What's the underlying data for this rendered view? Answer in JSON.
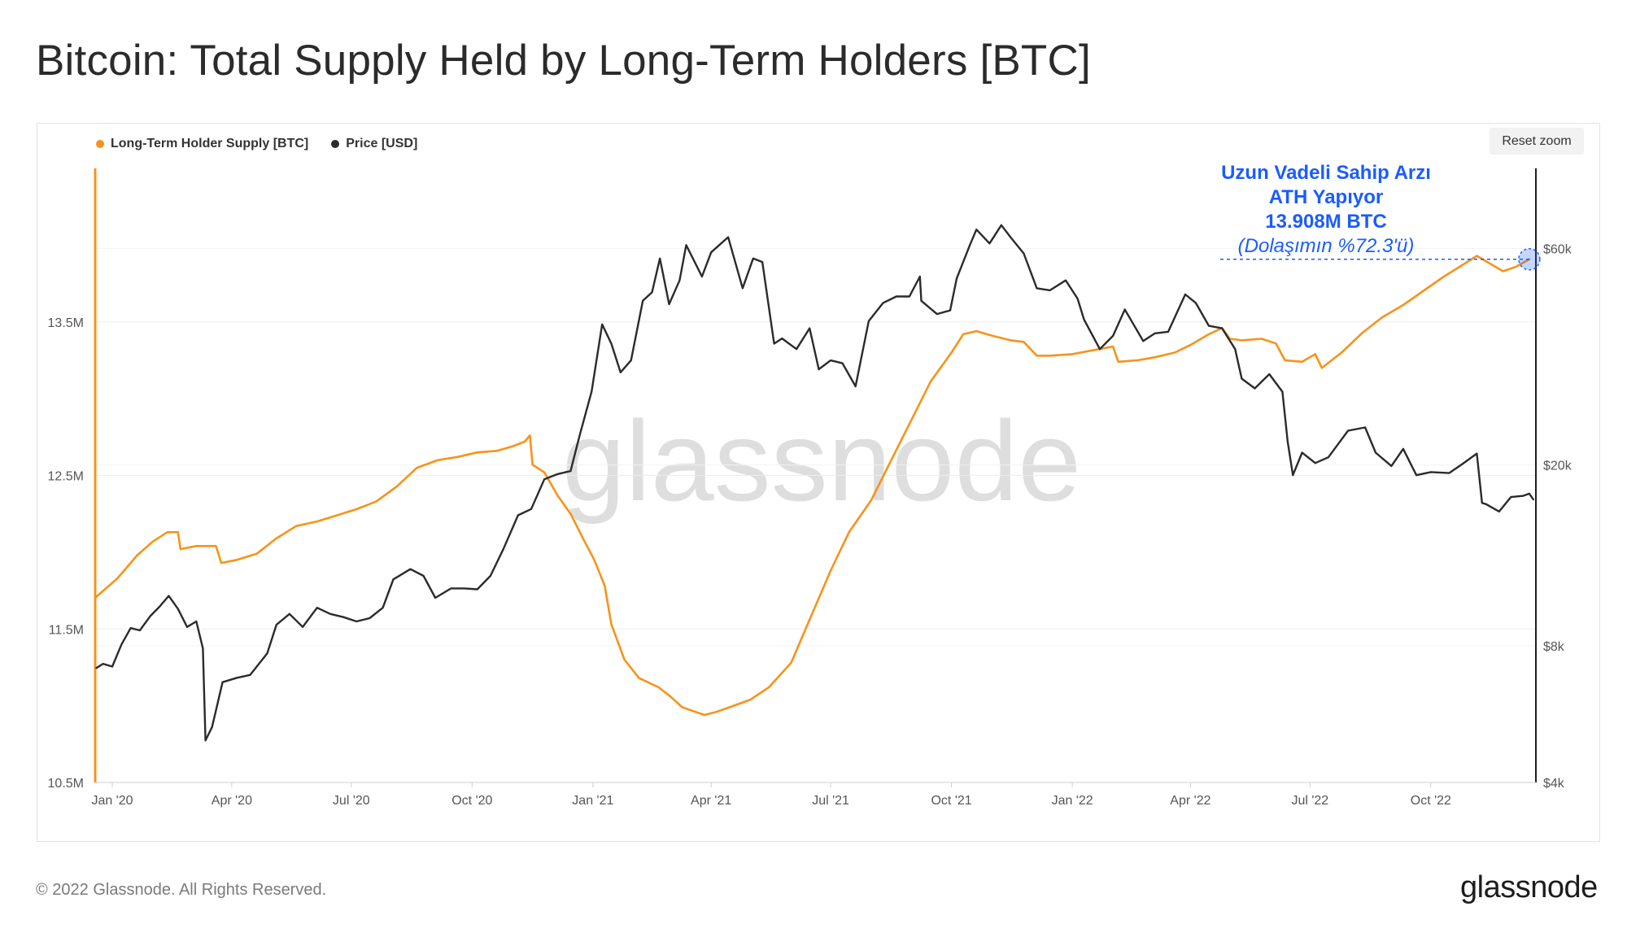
{
  "title": "Bitcoin: Total Supply Held by Long-Term Holders [BTC]",
  "reset_zoom_label": "Reset zoom",
  "footer_text": "© 2022 Glassnode. All Rights Reserved.",
  "logo_text": "glassnode",
  "watermark_text": "glassnode",
  "colors": {
    "supply": "#f7931a",
    "price": "#2b2b2b",
    "annotation": "#1a5cff"
  },
  "chart_data": {
    "type": "line",
    "title": "Bitcoin: Total Supply Held by Long-Term Holders [BTC]",
    "legend_position": "top-left",
    "grid": true,
    "x_range": [
      "2019-12-19",
      "2022-12-20"
    ],
    "x_ticks": [
      {
        "label": "Jan '20",
        "date": "2020-01-01"
      },
      {
        "label": "Apr '20",
        "date": "2020-04-01"
      },
      {
        "label": "Jul '20",
        "date": "2020-07-01"
      },
      {
        "label": "Oct '20",
        "date": "2020-10-01"
      },
      {
        "label": "Jan '21",
        "date": "2021-01-01"
      },
      {
        "label": "Apr '21",
        "date": "2021-04-01"
      },
      {
        "label": "Jul '21",
        "date": "2021-07-01"
      },
      {
        "label": "Oct '21",
        "date": "2021-10-01"
      },
      {
        "label": "Jan '22",
        "date": "2022-01-01"
      },
      {
        "label": "Apr '22",
        "date": "2022-04-01"
      },
      {
        "label": "Jul '22",
        "date": "2022-07-01"
      },
      {
        "label": "Oct '22",
        "date": "2022-10-01"
      }
    ],
    "y_left": {
      "ticks": [
        {
          "label": "10.5M",
          "value": 10500000
        },
        {
          "label": "11.5M",
          "value": 11500000
        },
        {
          "label": "12.5M",
          "value": 12500000
        },
        {
          "label": "13.5M",
          "value": 13500000
        }
      ],
      "range": [
        10500000,
        14500000
      ]
    },
    "y_right": {
      "scale": "log",
      "ticks": [
        {
          "label": "$4k",
          "value": 4000
        },
        {
          "label": "$8k",
          "value": 8000
        },
        {
          "label": "$20k",
          "value": 20000
        },
        {
          "label": "$60k",
          "value": 60000
        }
      ],
      "range": [
        4000,
        90000
      ]
    },
    "series": [
      {
        "name": "Long-Term Holder Supply [BTC]",
        "axis": "left",
        "color": "#f7931a",
        "points": [
          [
            "2019-12-20",
            11710000
          ],
          [
            "2020-01-05",
            11830000
          ],
          [
            "2020-01-20",
            11980000
          ],
          [
            "2020-02-01",
            12070000
          ],
          [
            "2020-02-12",
            12130000
          ],
          [
            "2020-02-20",
            12130000
          ],
          [
            "2020-02-22",
            12020000
          ],
          [
            "2020-03-05",
            12040000
          ],
          [
            "2020-03-20",
            12040000
          ],
          [
            "2020-03-24",
            11930000
          ],
          [
            "2020-04-05",
            11950000
          ],
          [
            "2020-04-20",
            11990000
          ],
          [
            "2020-05-05",
            12090000
          ],
          [
            "2020-05-20",
            12170000
          ],
          [
            "2020-06-05",
            12200000
          ],
          [
            "2020-06-20",
            12240000
          ],
          [
            "2020-07-05",
            12280000
          ],
          [
            "2020-07-20",
            12330000
          ],
          [
            "2020-08-05",
            12430000
          ],
          [
            "2020-08-20",
            12550000
          ],
          [
            "2020-09-05",
            12600000
          ],
          [
            "2020-09-20",
            12620000
          ],
          [
            "2020-10-05",
            12650000
          ],
          [
            "2020-10-20",
            12660000
          ],
          [
            "2020-11-01",
            12690000
          ],
          [
            "2020-11-10",
            12720000
          ],
          [
            "2020-11-14",
            12760000
          ],
          [
            "2020-11-16",
            12570000
          ],
          [
            "2020-11-25",
            12520000
          ],
          [
            "2020-12-05",
            12370000
          ],
          [
            "2020-12-15",
            12250000
          ],
          [
            "2020-12-25",
            12080000
          ],
          [
            "2021-01-02",
            11950000
          ],
          [
            "2021-01-10",
            11780000
          ],
          [
            "2021-01-15",
            11530000
          ],
          [
            "2021-01-25",
            11300000
          ],
          [
            "2021-02-05",
            11180000
          ],
          [
            "2021-02-20",
            11120000
          ],
          [
            "2021-03-01",
            11060000
          ],
          [
            "2021-03-10",
            10990000
          ],
          [
            "2021-03-20",
            10960000
          ],
          [
            "2021-03-27",
            10940000
          ],
          [
            "2021-04-05",
            10960000
          ],
          [
            "2021-04-15",
            10990000
          ],
          [
            "2021-05-01",
            11040000
          ],
          [
            "2021-05-15",
            11120000
          ],
          [
            "2021-06-01",
            11280000
          ],
          [
            "2021-06-15",
            11560000
          ],
          [
            "2021-07-01",
            11880000
          ],
          [
            "2021-07-15",
            12130000
          ],
          [
            "2021-08-01",
            12340000
          ],
          [
            "2021-08-15",
            12580000
          ],
          [
            "2021-09-01",
            12870000
          ],
          [
            "2021-09-15",
            13110000
          ],
          [
            "2021-10-01",
            13300000
          ],
          [
            "2021-10-10",
            13420000
          ],
          [
            "2021-10-20",
            13440000
          ],
          [
            "2021-11-01",
            13410000
          ],
          [
            "2021-11-15",
            13380000
          ],
          [
            "2021-11-25",
            13370000
          ],
          [
            "2021-12-05",
            13280000
          ],
          [
            "2021-12-15",
            13280000
          ],
          [
            "2022-01-01",
            13290000
          ],
          [
            "2022-01-20",
            13320000
          ],
          [
            "2022-02-01",
            13340000
          ],
          [
            "2022-02-05",
            13240000
          ],
          [
            "2022-02-20",
            13250000
          ],
          [
            "2022-03-05",
            13270000
          ],
          [
            "2022-03-20",
            13300000
          ],
          [
            "2022-04-01",
            13350000
          ],
          [
            "2022-04-15",
            13420000
          ],
          [
            "2022-04-25",
            13460000
          ],
          [
            "2022-05-01",
            13390000
          ],
          [
            "2022-05-10",
            13380000
          ],
          [
            "2022-05-25",
            13390000
          ],
          [
            "2022-06-05",
            13360000
          ],
          [
            "2022-06-12",
            13250000
          ],
          [
            "2022-06-25",
            13240000
          ],
          [
            "2022-07-05",
            13290000
          ],
          [
            "2022-07-10",
            13200000
          ],
          [
            "2022-07-25",
            13300000
          ],
          [
            "2022-08-10",
            13430000
          ],
          [
            "2022-08-25",
            13530000
          ],
          [
            "2022-09-10",
            13610000
          ],
          [
            "2022-09-25",
            13700000
          ],
          [
            "2022-10-10",
            13790000
          ],
          [
            "2022-10-25",
            13870000
          ],
          [
            "2022-11-05",
            13930000
          ],
          [
            "2022-11-15",
            13880000
          ],
          [
            "2022-11-25",
            13830000
          ],
          [
            "2022-12-05",
            13860000
          ],
          [
            "2022-12-15",
            13908000
          ]
        ]
      },
      {
        "name": "Price [USD]",
        "axis": "right",
        "color": "#2b2b2b",
        "points": [
          [
            "2019-12-20",
            7150
          ],
          [
            "2019-12-25",
            7300
          ],
          [
            "2020-01-01",
            7200
          ],
          [
            "2020-01-08",
            8050
          ],
          [
            "2020-01-15",
            8750
          ],
          [
            "2020-01-22",
            8650
          ],
          [
            "2020-01-30",
            9300
          ],
          [
            "2020-02-06",
            9750
          ],
          [
            "2020-02-13",
            10300
          ],
          [
            "2020-02-20",
            9650
          ],
          [
            "2020-02-27",
            8800
          ],
          [
            "2020-03-05",
            9050
          ],
          [
            "2020-03-10",
            7900
          ],
          [
            "2020-03-12",
            4950
          ],
          [
            "2020-03-17",
            5300
          ],
          [
            "2020-03-25",
            6650
          ],
          [
            "2020-04-05",
            6800
          ],
          [
            "2020-04-15",
            6900
          ],
          [
            "2020-04-28",
            7700
          ],
          [
            "2020-05-05",
            8900
          ],
          [
            "2020-05-15",
            9400
          ],
          [
            "2020-05-25",
            8800
          ],
          [
            "2020-06-05",
            9700
          ],
          [
            "2020-06-15",
            9400
          ],
          [
            "2020-06-25",
            9250
          ],
          [
            "2020-07-05",
            9050
          ],
          [
            "2020-07-15",
            9200
          ],
          [
            "2020-07-25",
            9700
          ],
          [
            "2020-08-02",
            11200
          ],
          [
            "2020-08-15",
            11800
          ],
          [
            "2020-08-25",
            11400
          ],
          [
            "2020-09-03",
            10200
          ],
          [
            "2020-09-15",
            10700
          ],
          [
            "2020-09-25",
            10700
          ],
          [
            "2020-10-05",
            10650
          ],
          [
            "2020-10-15",
            11400
          ],
          [
            "2020-10-25",
            13100
          ],
          [
            "2020-11-05",
            15500
          ],
          [
            "2020-11-15",
            16000
          ],
          [
            "2020-11-25",
            18600
          ],
          [
            "2020-12-05",
            19100
          ],
          [
            "2020-12-15",
            19400
          ],
          [
            "2020-12-22",
            23300
          ],
          [
            "2020-12-31",
            29000
          ],
          [
            "2021-01-08",
            40800
          ],
          [
            "2021-01-15",
            37000
          ],
          [
            "2021-01-22",
            32000
          ],
          [
            "2021-01-30",
            34000
          ],
          [
            "2021-02-08",
            46000
          ],
          [
            "2021-02-15",
            48000
          ],
          [
            "2021-02-21",
            57000
          ],
          [
            "2021-02-28",
            45200
          ],
          [
            "2021-03-08",
            51000
          ],
          [
            "2021-03-13",
            61000
          ],
          [
            "2021-03-25",
            52000
          ],
          [
            "2021-04-01",
            58800
          ],
          [
            "2021-04-14",
            63500
          ],
          [
            "2021-04-25",
            49000
          ],
          [
            "2021-05-03",
            57000
          ],
          [
            "2021-05-10",
            56000
          ],
          [
            "2021-05-19",
            37000
          ],
          [
            "2021-05-25",
            38000
          ],
          [
            "2021-06-05",
            36000
          ],
          [
            "2021-06-15",
            40000
          ],
          [
            "2021-06-22",
            32500
          ],
          [
            "2021-07-01",
            34000
          ],
          [
            "2021-07-10",
            33500
          ],
          [
            "2021-07-20",
            29800
          ],
          [
            "2021-07-30",
            41500
          ],
          [
            "2021-08-10",
            45500
          ],
          [
            "2021-08-20",
            47000
          ],
          [
            "2021-08-30",
            47000
          ],
          [
            "2021-09-07",
            52000
          ],
          [
            "2021-09-08",
            46000
          ],
          [
            "2021-09-20",
            43000
          ],
          [
            "2021-09-30",
            43800
          ],
          [
            "2021-10-05",
            51500
          ],
          [
            "2021-10-15",
            61000
          ],
          [
            "2021-10-20",
            66000
          ],
          [
            "2021-10-30",
            61500
          ],
          [
            "2021-11-08",
            67500
          ],
          [
            "2021-11-15",
            63500
          ],
          [
            "2021-11-25",
            58500
          ],
          [
            "2021-12-05",
            49000
          ],
          [
            "2021-12-15",
            48500
          ],
          [
            "2021-12-27",
            51000
          ],
          [
            "2022-01-05",
            46500
          ],
          [
            "2022-01-10",
            41800
          ],
          [
            "2022-01-22",
            36000
          ],
          [
            "2022-02-01",
            38500
          ],
          [
            "2022-02-10",
            44000
          ],
          [
            "2022-02-24",
            37500
          ],
          [
            "2022-03-05",
            39000
          ],
          [
            "2022-03-15",
            39300
          ],
          [
            "2022-03-28",
            47500
          ],
          [
            "2022-04-05",
            45500
          ],
          [
            "2022-04-15",
            40500
          ],
          [
            "2022-04-25",
            40000
          ],
          [
            "2022-05-05",
            36000
          ],
          [
            "2022-05-10",
            31000
          ],
          [
            "2022-05-20",
            29500
          ],
          [
            "2022-05-31",
            31700
          ],
          [
            "2022-06-10",
            29000
          ],
          [
            "2022-06-14",
            22500
          ],
          [
            "2022-06-18",
            19000
          ],
          [
            "2022-06-25",
            21300
          ],
          [
            "2022-07-05",
            20200
          ],
          [
            "2022-07-15",
            20800
          ],
          [
            "2022-07-30",
            23800
          ],
          [
            "2022-08-12",
            24200
          ],
          [
            "2022-08-20",
            21300
          ],
          [
            "2022-09-01",
            19900
          ],
          [
            "2022-09-10",
            21700
          ],
          [
            "2022-09-20",
            19000
          ],
          [
            "2022-10-01",
            19300
          ],
          [
            "2022-10-15",
            19200
          ],
          [
            "2022-10-25",
            20100
          ],
          [
            "2022-11-05",
            21200
          ],
          [
            "2022-11-09",
            16500
          ],
          [
            "2022-11-12",
            16400
          ],
          [
            "2022-11-22",
            15800
          ],
          [
            "2022-12-01",
            17000
          ],
          [
            "2022-12-10",
            17100
          ],
          [
            "2022-12-15",
            17300
          ],
          [
            "2022-12-18",
            16800
          ]
        ]
      }
    ],
    "annotation": {
      "lines": [
        "Uzun Vadeli Sahip Arzı",
        "ATH Yapıyor",
        "13.908M BTC",
        "(Dolaşımın %72.3'ü)"
      ],
      "date": "2022-12-15",
      "value": 13908000
    }
  }
}
